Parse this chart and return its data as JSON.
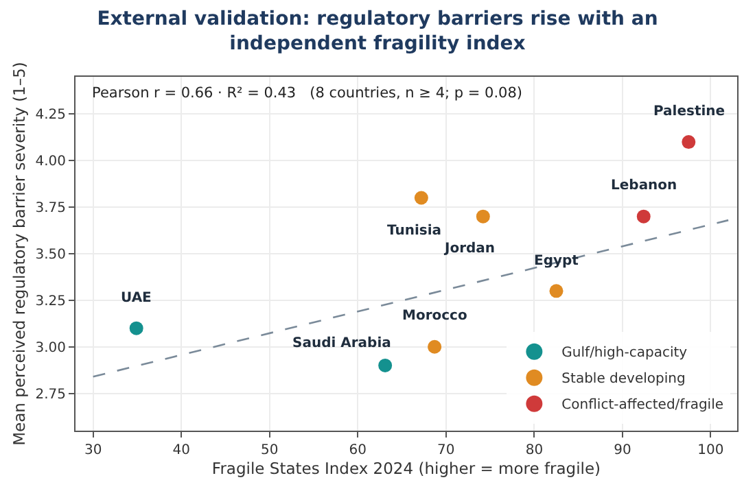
{
  "chart_data": {
    "type": "scatter",
    "title": "External validation: regulatory barriers rise with an independent fragility index",
    "xlabel": "Fragile States Index 2024 (higher = more fragile)",
    "ylabel": "Mean perceived regulatory barrier severity (1–5)",
    "xlim": [
      28,
      103
    ],
    "ylim": [
      2.55,
      4.45
    ],
    "xticks": [
      30,
      40,
      50,
      60,
      70,
      80,
      90,
      100
    ],
    "yticks": [
      2.75,
      {
        "value": 3,
        "label": "3.00"
      },
      3.25,
      {
        "value": 3.5,
        "label": "3.50"
      },
      3.75,
      {
        "value": 4,
        "label": "4.00"
      },
      4.25
    ],
    "grid": true,
    "legend": "bottom right",
    "marker": "circle",
    "series": [
      {
        "name": "Gulf/high-capacity",
        "color": "#14918f",
        "x": [
          34.9,
          63.1
        ],
        "values": [
          3.1,
          2.9
        ]
      },
      {
        "name": "Stable developing",
        "color": "#e08b22",
        "x": [
          68.7,
          67.2,
          74.2,
          82.5
        ],
        "values": [
          3.0,
          3.8,
          3.7,
          3.3
        ]
      },
      {
        "name": "Conflict-affected/fragile",
        "color": "#cf3a3a",
        "x": [
          92.4,
          97.5
        ],
        "values": [
          3.7,
          4.1
        ]
      },
      {
        "type": "line",
        "color": "#7a8a99",
        "line_style": "dashed",
        "marker": "none",
        "x": [
          30,
          102
        ],
        "values": [
          2.84,
          3.68
        ]
      }
    ],
    "annotations": [
      "Pearson r = 0.66 · R² = 0.43   (8 countries, n ≥ 4; p = 0.08)",
      {
        "text": "UAE",
        "x": 34.9,
        "y": 3.1
      },
      {
        "text": "Saudi Arabia",
        "x": 63.1,
        "y": 2.9
      },
      {
        "text": "Morocco",
        "x": 68.7,
        "y": 3.0
      },
      {
        "text": "Tunisia",
        "x": 67.2,
        "y": 3.8
      },
      {
        "text": "Jordan",
        "x": 74.2,
        "y": 3.7
      },
      {
        "text": "Egypt",
        "x": 82.5,
        "y": 3.3
      },
      {
        "text": "Lebanon",
        "x": 92.4,
        "y": 3.7
      },
      {
        "text": "Palestine",
        "x": 97.5,
        "y": 4.1
      }
    ]
  }
}
